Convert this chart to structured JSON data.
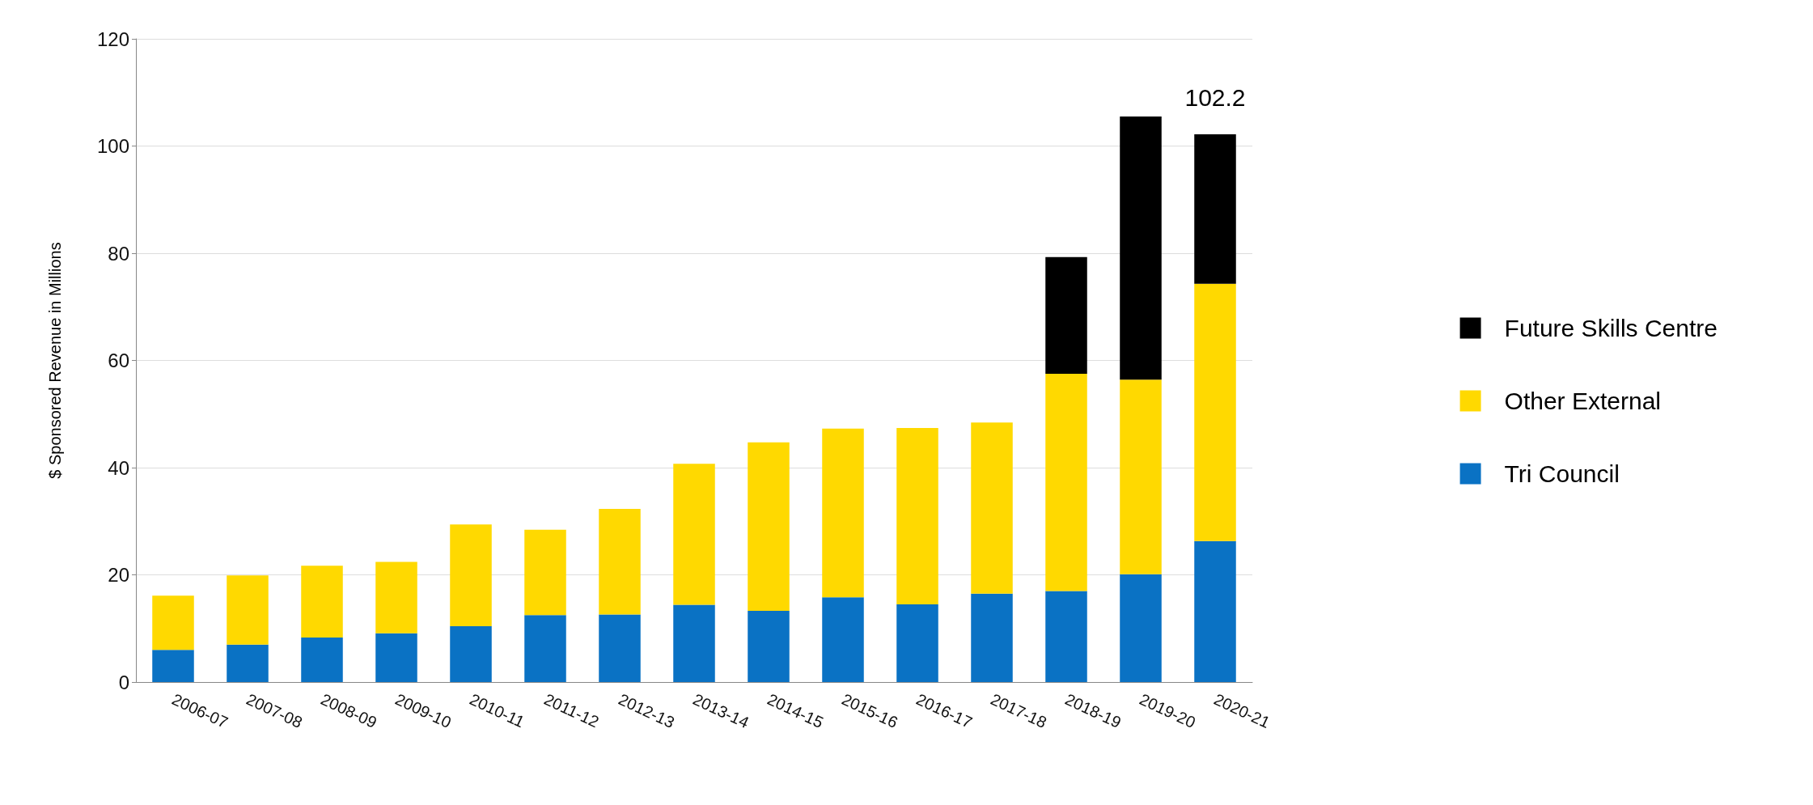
{
  "chart_data": {
    "type": "bar",
    "stacked": true,
    "ylabel": "$ Sponsored Revenue in Millions",
    "categories": [
      "2006-07",
      "2007-08",
      "2008-09",
      "2009-10",
      "2010-11",
      "2011-12",
      "2012-13",
      "2013-14",
      "2014-15",
      "2015-16",
      "2016-17",
      "2017-18",
      "2018-19",
      "2019-20",
      "2020-21"
    ],
    "series": [
      {
        "name": "Tri Council",
        "color": "#0a72c4",
        "values": [
          6.0,
          7.0,
          8.3,
          9.1,
          10.4,
          12.5,
          12.6,
          14.4,
          13.3,
          15.8,
          14.5,
          16.5,
          17.0,
          20.1,
          26.3
        ]
      },
      {
        "name": "Other External",
        "color": "#ffd900",
        "values": [
          10.1,
          12.9,
          13.4,
          13.3,
          19.0,
          15.9,
          19.7,
          26.3,
          31.4,
          31.5,
          32.9,
          31.9,
          40.5,
          36.3,
          48.0
        ]
      },
      {
        "name": "Future Skills Centre",
        "color": "#000000",
        "values": [
          null,
          null,
          null,
          null,
          null,
          null,
          null,
          null,
          null,
          null,
          null,
          null,
          21.8,
          49.1,
          27.9
        ]
      }
    ],
    "annotations": [
      {
        "text": "102.2",
        "x": "2020-21",
        "y": 102.2
      }
    ],
    "ylim": [
      0,
      120
    ],
    "yticks": [
      0,
      20,
      40,
      60,
      80,
      100,
      120
    ],
    "grid": "y",
    "legend": "right"
  }
}
